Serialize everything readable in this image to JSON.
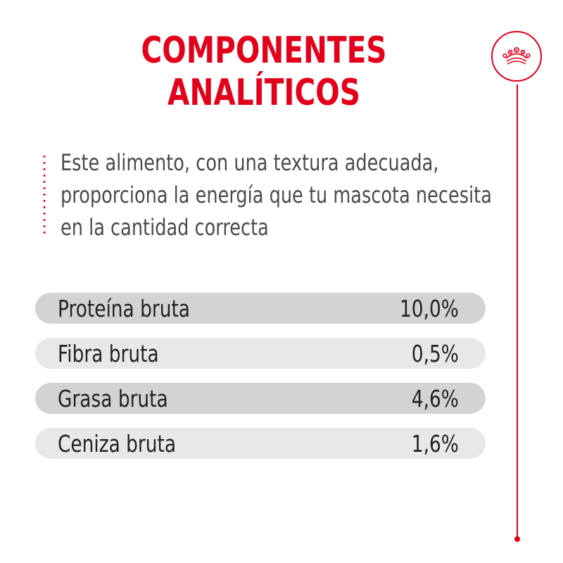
{
  "title": {
    "line1": "COMPONENTES",
    "line2": "ANALÍTICOS"
  },
  "description": {
    "line1": "Este alimento, con una textura adecuada,",
    "line2": "proporciona la energía que tu mascota necesita",
    "line3": "en la cantidad correcta"
  },
  "components": [
    {
      "label": "Proteína bruta",
      "value": "10,0%"
    },
    {
      "label": "Fibra bruta",
      "value": "0,5%"
    },
    {
      "label": "Grasa bruta",
      "value": "4,6%"
    },
    {
      "label": "Ceniza bruta",
      "value": "1,6%"
    }
  ],
  "brand": {
    "icon": "crown-icon",
    "accent_color": "#e2001a"
  }
}
